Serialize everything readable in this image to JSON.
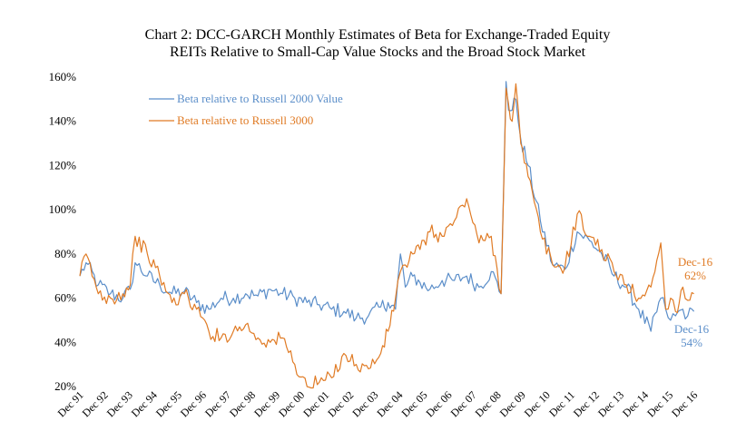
{
  "colors": {
    "blue": "#5b8ec9",
    "orange": "#e07b25"
  },
  "chart_data": {
    "type": "line",
    "title_lines": [
      "Chart 2: DCC-GARCH  Monthly Estimates of Beta for Exchange-Traded Equity",
      "REITs Relative to Small-Cap Value Stocks and the Broad Stock Market"
    ],
    "y_ticks": [
      "20%",
      "40%",
      "60%",
      "80%",
      "100%",
      "120%",
      "140%",
      "160%"
    ],
    "ylim": [
      20,
      160
    ],
    "x_ticks": [
      "Dec 91",
      "Dec 92",
      "Dec 93",
      "Dec 94",
      "Dec 95",
      "Dec 96",
      "Dec 97",
      "Dec 98",
      "Dec 99",
      "Dec 00",
      "Dec 01",
      "Dec 02",
      "Dec 03",
      "Dec 04",
      "Dec 05",
      "Dec 06",
      "Dec 07",
      "Dec 08",
      "Dec 09",
      "Dec 10",
      "Dec 11",
      "Dec 12",
      "Dec 13",
      "Dec 14",
      "Dec 15",
      "Dec 16"
    ],
    "xlim": [
      1991.75,
      2016.95
    ],
    "grid": false,
    "legend_position": "top-left",
    "series": [
      {
        "name": "Beta relative to Russell 2000 Value",
        "color": "#5b8ec9",
        "x": [
          1991.75,
          1992.0,
          1992.5,
          1993.0,
          1993.5,
          1993.8,
          1994.0,
          1994.5,
          1995.0,
          1995.5,
          1996.0,
          1996.5,
          1997.0,
          1997.5,
          1998.0,
          1998.5,
          1999.0,
          1999.5,
          2000.0,
          2000.5,
          2001.0,
          2001.5,
          2002.0,
          2002.5,
          2003.0,
          2003.5,
          2004.0,
          2004.3,
          2004.6,
          2004.8,
          2005.0,
          2005.3,
          2005.6,
          2006.0,
          2006.5,
          2007.0,
          2007.5,
          2008.0,
          2008.5,
          2008.9,
          2009.1,
          2009.2,
          2009.35,
          2009.5,
          2009.7,
          2010.0,
          2010.5,
          2011.0,
          2011.5,
          2012.0,
          2012.5,
          2013.0,
          2013.5,
          2014.0,
          2014.5,
          2015.0,
          2015.4,
          2015.6,
          2015.8,
          2016.0,
          2016.3,
          2016.5,
          2016.75
        ],
        "values": [
          70,
          76,
          66,
          62,
          60,
          64,
          76,
          70,
          66,
          62,
          63,
          58,
          55,
          60,
          60,
          62,
          61,
          64,
          62,
          60,
          58,
          57,
          55,
          54,
          51,
          52,
          56,
          58,
          55,
          80,
          65,
          70,
          67,
          64,
          68,
          68,
          70,
          65,
          72,
          62,
          158,
          145,
          145,
          150,
          132,
          120,
          95,
          75,
          73,
          90,
          86,
          80,
          70,
          65,
          55,
          45,
          60,
          55,
          50,
          52,
          55,
          52,
          54
        ]
      },
      {
        "name": "Beta relative to Russell 3000",
        "color": "#e07b25",
        "x": [
          1991.75,
          1992.0,
          1992.5,
          1993.0,
          1993.5,
          1993.8,
          1994.0,
          1994.5,
          1995.0,
          1995.5,
          1996.0,
          1996.5,
          1997.0,
          1997.5,
          1998.0,
          1998.5,
          1999.0,
          1999.5,
          2000.0,
          2000.5,
          2001.0,
          2001.5,
          2002.0,
          2002.5,
          2003.0,
          2003.5,
          2004.0,
          2004.3,
          2004.6,
          2004.8,
          2005.0,
          2005.3,
          2005.6,
          2006.0,
          2006.5,
          2007.0,
          2007.5,
          2008.0,
          2008.5,
          2008.9,
          2009.1,
          2009.2,
          2009.35,
          2009.5,
          2009.7,
          2010.0,
          2010.5,
          2011.0,
          2011.5,
          2012.0,
          2012.5,
          2013.0,
          2013.5,
          2014.0,
          2014.5,
          2015.0,
          2015.4,
          2015.6,
          2015.8,
          2016.0,
          2016.3,
          2016.5,
          2016.75
        ],
        "values": [
          70,
          80,
          62,
          60,
          62,
          66,
          88,
          80,
          70,
          58,
          62,
          55,
          45,
          42,
          45,
          48,
          42,
          40,
          42,
          30,
          20,
          22,
          24,
          35,
          30,
          28,
          35,
          45,
          60,
          72,
          75,
          80,
          82,
          90,
          88,
          95,
          105,
          85,
          88,
          62,
          155,
          148,
          140,
          157,
          130,
          115,
          90,
          75,
          74,
          98,
          88,
          82,
          72,
          66,
          60,
          65,
          85,
          55,
          60,
          54,
          65,
          59,
          62
        ]
      }
    ],
    "annotations": [
      {
        "label": "Dec-16",
        "value": "62%",
        "series": "Beta relative to Russell 3000"
      },
      {
        "label": "Dec-16",
        "value": "54%",
        "series": "Beta relative to Russell 2000 Value"
      }
    ]
  }
}
